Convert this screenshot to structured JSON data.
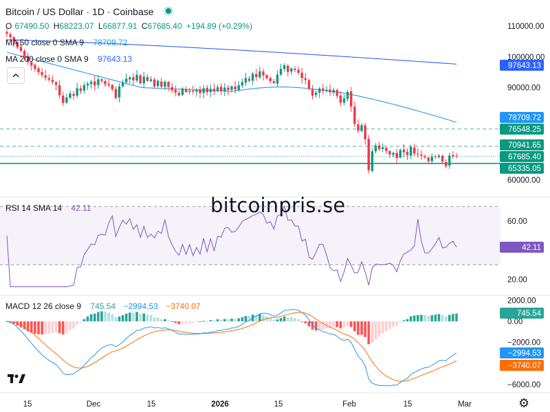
{
  "header": {
    "title": "Bitcoin / US Dollar · 1D · Coinbase",
    "ohlc": [
      {
        "label": "O",
        "value": "67490.50"
      },
      {
        "label": "H",
        "value": "68223.07"
      },
      {
        "label": "L",
        "value": "66877.91"
      },
      {
        "label": "C",
        "value": "67685.40"
      }
    ],
    "change": "+194.89 (+0.29%)",
    "ma50_label": "MA 50 close 0 SMA 9",
    "ma50_value": "78709.72",
    "ma200_label": "MA 200 close 0 SMA 9",
    "ma200_value": "97643.13"
  },
  "rsi_legend": {
    "label": "RSI 14 SMA 14",
    "value": "42.11"
  },
  "macd_legend": {
    "label": "MACD 12 26 close 9",
    "hist": "745.54",
    "macd": "−2994.53",
    "signal": "−3740.07"
  },
  "watermark": "bitcoinpris.se",
  "price_axis": [
    "110000.00",
    "100000.00",
    "90000.00",
    "60000.00"
  ],
  "price_tags": [
    {
      "text": "97643.13",
      "color": "#2962ff",
      "value": 97643.13
    },
    {
      "text": "78709.72",
      "color": "#2196f3",
      "value": 78709.72
    },
    {
      "text": "76548.25",
      "color": "#089981",
      "value": 76548.25
    },
    {
      "text": "70941.65",
      "color": "#089981",
      "value": 70941.65
    },
    {
      "text": "67685.40",
      "color": "#089981",
      "value": 67685.4
    },
    {
      "text": "65335.05",
      "color": "#089981",
      "value": 65335.05
    }
  ],
  "rsi_axis": [
    "60.00",
    "20.00"
  ],
  "rsi_tag": {
    "text": "42.11",
    "color": "#7e57c2",
    "value": 42.11
  },
  "macd_axis": [
    "2000.00",
    "0.00",
    "−2000.00",
    "−6000.00"
  ],
  "macd_tags": [
    {
      "text": "745.54",
      "color": "#26a69a",
      "value": 745.54
    },
    {
      "text": "−2994.53",
      "color": "#2196f3",
      "value": -2994.53
    },
    {
      "text": "−3740.07",
      "color": "#ff6d00",
      "value": -3740.07
    }
  ],
  "time_axis": [
    "15",
    "Dec",
    "15",
    "2026",
    "15",
    "Feb",
    "15",
    "Mar"
  ],
  "colors": {
    "up": "#089981",
    "down": "#f23645",
    "ma50": "#2196f3",
    "ma200": "#2962ff",
    "rsi": "#7e57c2",
    "macd": "#2196f3",
    "signal": "#ff6d00"
  },
  "chart_data": {
    "type": "candlestick",
    "symbol": "Bitcoin / US Dollar",
    "interval": "1D",
    "exchange": "Coinbase",
    "x_ticks": [
      "15",
      "Dec",
      "15",
      "2026",
      "15",
      "Feb",
      "15",
      "Mar"
    ],
    "y_ticks": [
      110000,
      100000,
      90000,
      60000
    ],
    "close": [
      107500,
      106400,
      104800,
      103100,
      101900,
      100300,
      98400,
      97200,
      96100,
      95000,
      94100,
      93200,
      92600,
      91800,
      90900,
      87500,
      85000,
      86800,
      88100,
      87300,
      89800,
      88900,
      90800,
      91300,
      91900,
      90700,
      92700,
      92200,
      91100,
      90700,
      89500,
      86600,
      90400,
      91700,
      92900,
      93300,
      92400,
      94200,
      91400,
      93600,
      92200,
      92700,
      90400,
      92200,
      90300,
      91900,
      90200,
      89100,
      88400,
      87500,
      89700,
      88600,
      89000,
      88700,
      89400,
      88200,
      89800,
      88500,
      89600,
      88800,
      90100,
      88800,
      90000,
      89200,
      90400,
      89400,
      90800,
      91800,
      93100,
      92200,
      94500,
      93400,
      95300,
      94000,
      93100,
      92100,
      91500,
      94200,
      96100,
      97300,
      95100,
      96200,
      95700,
      94800,
      93100,
      92500,
      89600,
      87400,
      88400,
      89700,
      89000,
      89300,
      88500,
      89200,
      87300,
      85100,
      86500,
      88600,
      83800,
      78200,
      76000,
      77800,
      73200,
      63100,
      69300,
      71200,
      70000,
      70600,
      69400,
      68300,
      68800,
      67100,
      69700,
      69000,
      68100,
      70700,
      68600,
      68400,
      67900,
      67300,
      66100,
      67500,
      67600,
      67900,
      66000,
      64500,
      67900,
      67700,
      67685.4
    ],
    "ma50_end": 78709.72,
    "ma200_end": 97643.13,
    "levels": [
      76548.25,
      70941.65,
      67685.4,
      65335.05
    ],
    "rsi": {
      "length": 14,
      "last": 42.11,
      "band_upper": 70,
      "band_lower": 30
    },
    "macd": {
      "fast": 12,
      "slow": 26,
      "signal": 9,
      "hist_last": 745.54,
      "macd_last": -2994.53,
      "signal_last": -3740.07
    }
  }
}
